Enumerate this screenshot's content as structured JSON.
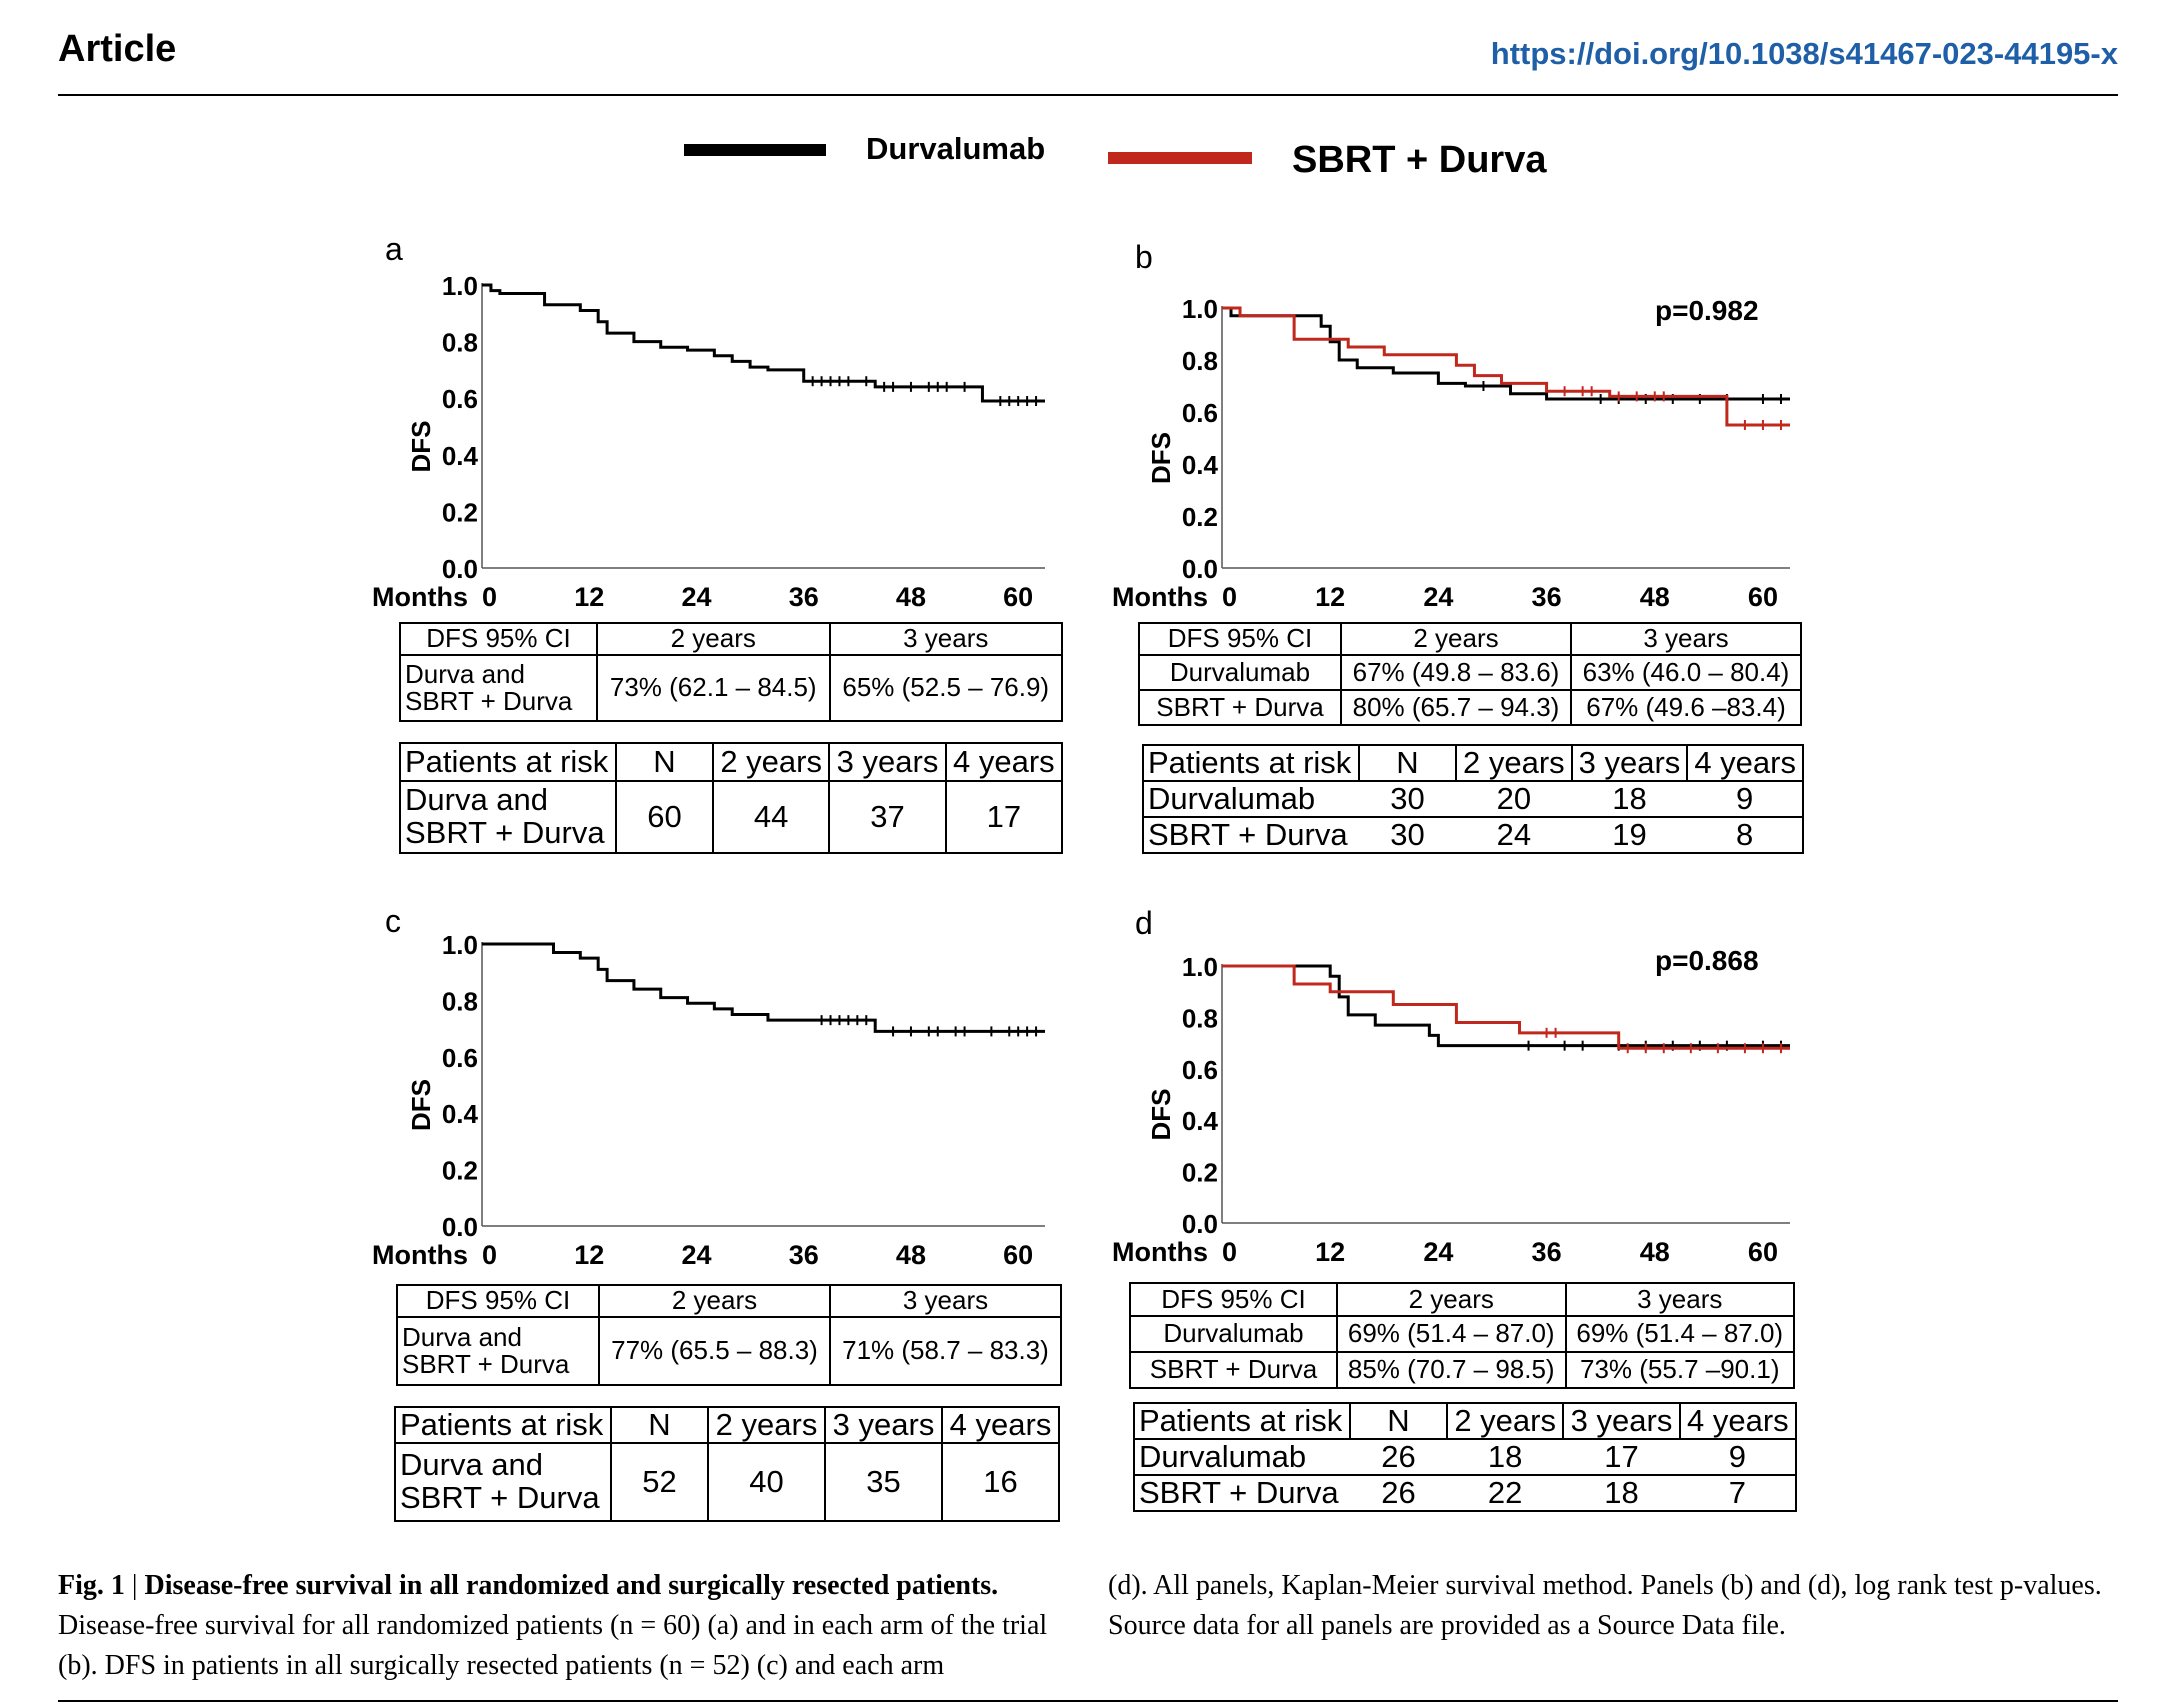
{
  "header": {
    "article_label": "Article",
    "doi": "https://doi.org/10.1038/s41467-023-44195-x"
  },
  "legend": {
    "items": [
      {
        "label": "Durvalumab",
        "color": "#000000"
      },
      {
        "label": "SBRT + Durva",
        "color": "#c0281e"
      }
    ]
  },
  "chart_data": [
    {
      "panel": "a",
      "type": "line",
      "ylabel": "DFS",
      "xlabel": "Months",
      "xlim": [
        0,
        63
      ],
      "ylim": [
        0,
        1
      ],
      "xticks": [
        "0",
        "12",
        "24",
        "36",
        "48",
        "60"
      ],
      "yticks": [
        "0.0",
        "0.2",
        "0.4",
        "0.6",
        "0.8",
        "1.0"
      ],
      "p_value": "",
      "series": [
        {
          "name": "Durva and SBRT + Durva",
          "color": "#000000",
          "steps": [
            [
              0,
              1.0
            ],
            [
              1,
              0.98
            ],
            [
              2,
              0.97
            ],
            [
              7,
              0.93
            ],
            [
              11,
              0.91
            ],
            [
              13,
              0.87
            ],
            [
              14,
              0.83
            ],
            [
              17,
              0.8
            ],
            [
              20,
              0.78
            ],
            [
              23,
              0.77
            ],
            [
              26,
              0.75
            ],
            [
              28,
              0.73
            ],
            [
              30,
              0.71
            ],
            [
              32,
              0.7
            ],
            [
              36,
              0.66
            ],
            [
              44,
              0.64
            ],
            [
              56,
              0.59
            ],
            [
              63,
              0.59
            ]
          ],
          "censor": [
            37,
            38,
            39,
            40,
            41,
            43,
            45,
            46,
            48,
            50,
            51,
            52,
            54,
            58,
            59,
            60,
            61,
            62
          ]
        }
      ],
      "ci_table": {
        "headers": [
          "DFS 95% CI",
          "2 years",
          "3 years"
        ],
        "rows": [
          {
            "group": "Durva and\nSBRT + Durva",
            "y2": "73% (62.1 – 84.5)",
            "y3": "65% (52.5 – 76.9)"
          }
        ]
      },
      "risk_table": {
        "headers": [
          "Patients at risk",
          "N",
          "2 years",
          "3 years",
          "4 years"
        ],
        "rows": [
          {
            "group": "Durva and\nSBRT + Durva",
            "n": "60",
            "y2": "44",
            "y3": "37",
            "y4": "17"
          }
        ]
      }
    },
    {
      "panel": "b",
      "type": "line",
      "ylabel": "DFS",
      "xlabel": "Months",
      "xlim": [
        0,
        63
      ],
      "ylim": [
        0,
        1
      ],
      "xticks": [
        "0",
        "12",
        "24",
        "36",
        "48",
        "60"
      ],
      "yticks": [
        "0.0",
        "0.2",
        "0.4",
        "0.6",
        "0.8",
        "1.0"
      ],
      "p_value": "p=0.982",
      "series": [
        {
          "name": "Durvalumab",
          "color": "#000000",
          "steps": [
            [
              0,
              1.0
            ],
            [
              1,
              0.97
            ],
            [
              3,
              0.97
            ],
            [
              11,
              0.93
            ],
            [
              12,
              0.87
            ],
            [
              13,
              0.8
            ],
            [
              15,
              0.77
            ],
            [
              19,
              0.75
            ],
            [
              24,
              0.71
            ],
            [
              27,
              0.7
            ],
            [
              32,
              0.67
            ],
            [
              36,
              0.65
            ],
            [
              63,
              0.65
            ]
          ],
          "censor": [
            29,
            42,
            44,
            47,
            50,
            53,
            56,
            60,
            62
          ]
        },
        {
          "name": "SBRT + Durva",
          "color": "#c0281e",
          "steps": [
            [
              0,
              1.0
            ],
            [
              2,
              0.97
            ],
            [
              7,
              0.97
            ],
            [
              8,
              0.88
            ],
            [
              13,
              0.88
            ],
            [
              14,
              0.85
            ],
            [
              17,
              0.85
            ],
            [
              18,
              0.82
            ],
            [
              25,
              0.82
            ],
            [
              26,
              0.78
            ],
            [
              28,
              0.74
            ],
            [
              31,
              0.71
            ],
            [
              36,
              0.68
            ],
            [
              43,
              0.66
            ],
            [
              55,
              0.66
            ],
            [
              56,
              0.55
            ],
            [
              63,
              0.55
            ]
          ],
          "censor": [
            38,
            40,
            41,
            44,
            46,
            48,
            49,
            58,
            60,
            62
          ]
        }
      ],
      "ci_table": {
        "headers": [
          "DFS 95% CI",
          "2 years",
          "3 years"
        ],
        "rows": [
          {
            "group": "Durvalumab",
            "y2": "67% (49.8 – 83.6)",
            "y3": "63% (46.0 – 80.4)"
          },
          {
            "group": "SBRT + Durva",
            "y2": "80% (65.7 – 94.3)",
            "y3": "67% (49.6 –83.4)"
          }
        ]
      },
      "risk_table": {
        "headers": [
          "Patients at risk",
          "N",
          "2 years",
          "3 years",
          "4 years"
        ],
        "rows": [
          {
            "group": "Durvalumab",
            "n": "30",
            "y2": "20",
            "y3": "18",
            "y4": "9"
          },
          {
            "group": "SBRT + Durva",
            "n": "30",
            "y2": "24",
            "y3": "19",
            "y4": "8"
          }
        ]
      }
    },
    {
      "panel": "c",
      "type": "line",
      "ylabel": "DFS",
      "xlabel": "Months",
      "xlim": [
        0,
        63
      ],
      "ylim": [
        0,
        1
      ],
      "xticks": [
        "0",
        "12",
        "24",
        "36",
        "48",
        "60"
      ],
      "yticks": [
        "0.0",
        "0.2",
        "0.4",
        "0.6",
        "0.8",
        "1.0"
      ],
      "p_value": "",
      "series": [
        {
          "name": "Durva and SBRT + Durva",
          "color": "#000000",
          "steps": [
            [
              0,
              1.0
            ],
            [
              7,
              1.0
            ],
            [
              8,
              0.97
            ],
            [
              11,
              0.95
            ],
            [
              13,
              0.91
            ],
            [
              14,
              0.87
            ],
            [
              17,
              0.84
            ],
            [
              20,
              0.81
            ],
            [
              23,
              0.79
            ],
            [
              26,
              0.77
            ],
            [
              28,
              0.75
            ],
            [
              32,
              0.73
            ],
            [
              44,
              0.69
            ],
            [
              63,
              0.69
            ]
          ],
          "censor": [
            38,
            39,
            40,
            41,
            42,
            43,
            46,
            48,
            50,
            51,
            53,
            54,
            57,
            59,
            60,
            61,
            62
          ]
        }
      ],
      "ci_table": {
        "headers": [
          "DFS 95% CI",
          "2 years",
          "3 years"
        ],
        "rows": [
          {
            "group": "Durva and\nSBRT + Durva",
            "y2": "77% (65.5 – 88.3)",
            "y3": "71% (58.7 – 83.3)"
          }
        ]
      },
      "risk_table": {
        "headers": [
          "Patients at risk",
          "N",
          "2 years",
          "3 years",
          "4 years"
        ],
        "rows": [
          {
            "group": "Durva and\nSBRT + Durva",
            "n": "52",
            "y2": "40",
            "y3": "35",
            "y4": "16"
          }
        ]
      }
    },
    {
      "panel": "d",
      "type": "line",
      "ylabel": "DFS",
      "xlabel": "Months",
      "xlim": [
        0,
        63
      ],
      "ylim": [
        0,
        1
      ],
      "xticks": [
        "0",
        "12",
        "24",
        "36",
        "48",
        "60"
      ],
      "yticks": [
        "0.0",
        "0.2",
        "0.4",
        "0.6",
        "0.8",
        "1.0"
      ],
      "p_value": "p=0.868",
      "series": [
        {
          "name": "Durvalumab",
          "color": "#000000",
          "steps": [
            [
              0,
              1.0
            ],
            [
              11,
              1.0
            ],
            [
              12,
              0.96
            ],
            [
              13,
              0.88
            ],
            [
              14,
              0.81
            ],
            [
              17,
              0.77
            ],
            [
              23,
              0.73
            ],
            [
              24,
              0.69
            ],
            [
              63,
              0.69
            ]
          ],
          "censor": [
            34,
            38,
            40,
            44,
            47,
            50,
            53,
            56,
            60,
            62
          ]
        },
        {
          "name": "SBRT + Durva",
          "color": "#c0281e",
          "steps": [
            [
              0,
              1.0
            ],
            [
              7,
              1.0
            ],
            [
              8,
              0.93
            ],
            [
              11,
              0.93
            ],
            [
              12,
              0.9
            ],
            [
              15,
              0.9
            ],
            [
              19,
              0.85
            ],
            [
              25,
              0.85
            ],
            [
              26,
              0.78
            ],
            [
              32,
              0.78
            ],
            [
              33,
              0.74
            ],
            [
              43,
              0.74
            ],
            [
              44,
              0.68
            ],
            [
              63,
              0.68
            ]
          ],
          "censor": [
            36,
            37,
            45,
            47,
            49,
            52,
            55,
            58,
            60,
            62
          ]
        }
      ],
      "ci_table": {
        "headers": [
          "DFS 95% CI",
          "2 years",
          "3 years"
        ],
        "rows": [
          {
            "group": "Durvalumab",
            "y2": "69% (51.4 – 87.0)",
            "y3": "69% (51.4 – 87.0)"
          },
          {
            "group": "SBRT + Durva",
            "y2": "85% (70.7 – 98.5)",
            "y3": "73% (55.7 –90.1)"
          }
        ]
      },
      "risk_table": {
        "headers": [
          "Patients at risk",
          "N",
          "2 years",
          "3 years",
          "4 years"
        ],
        "rows": [
          {
            "group": "Durvalumab",
            "n": "26",
            "y2": "18",
            "y3": "17",
            "y4": "9"
          },
          {
            "group": "SBRT + Durva",
            "n": "26",
            "y2": "22",
            "y3": "18",
            "y4": "7"
          }
        ]
      }
    }
  ],
  "caption": {
    "label": "Fig. 1",
    "separator": " | ",
    "title": "Disease-free survival in all randomized and surgically resected patients.",
    "body_left": "Disease-free survival for all randomized patients (n = 60) (a) and in each arm of the trial (b). DFS in patients in all surgically resected patients (n = 52) (c) and each arm",
    "body_right": "(d). All panels, Kaplan-Meier survival method. Panels (b) and (d), log rank test p-values. Source data for all panels are provided as a Source Data file."
  }
}
